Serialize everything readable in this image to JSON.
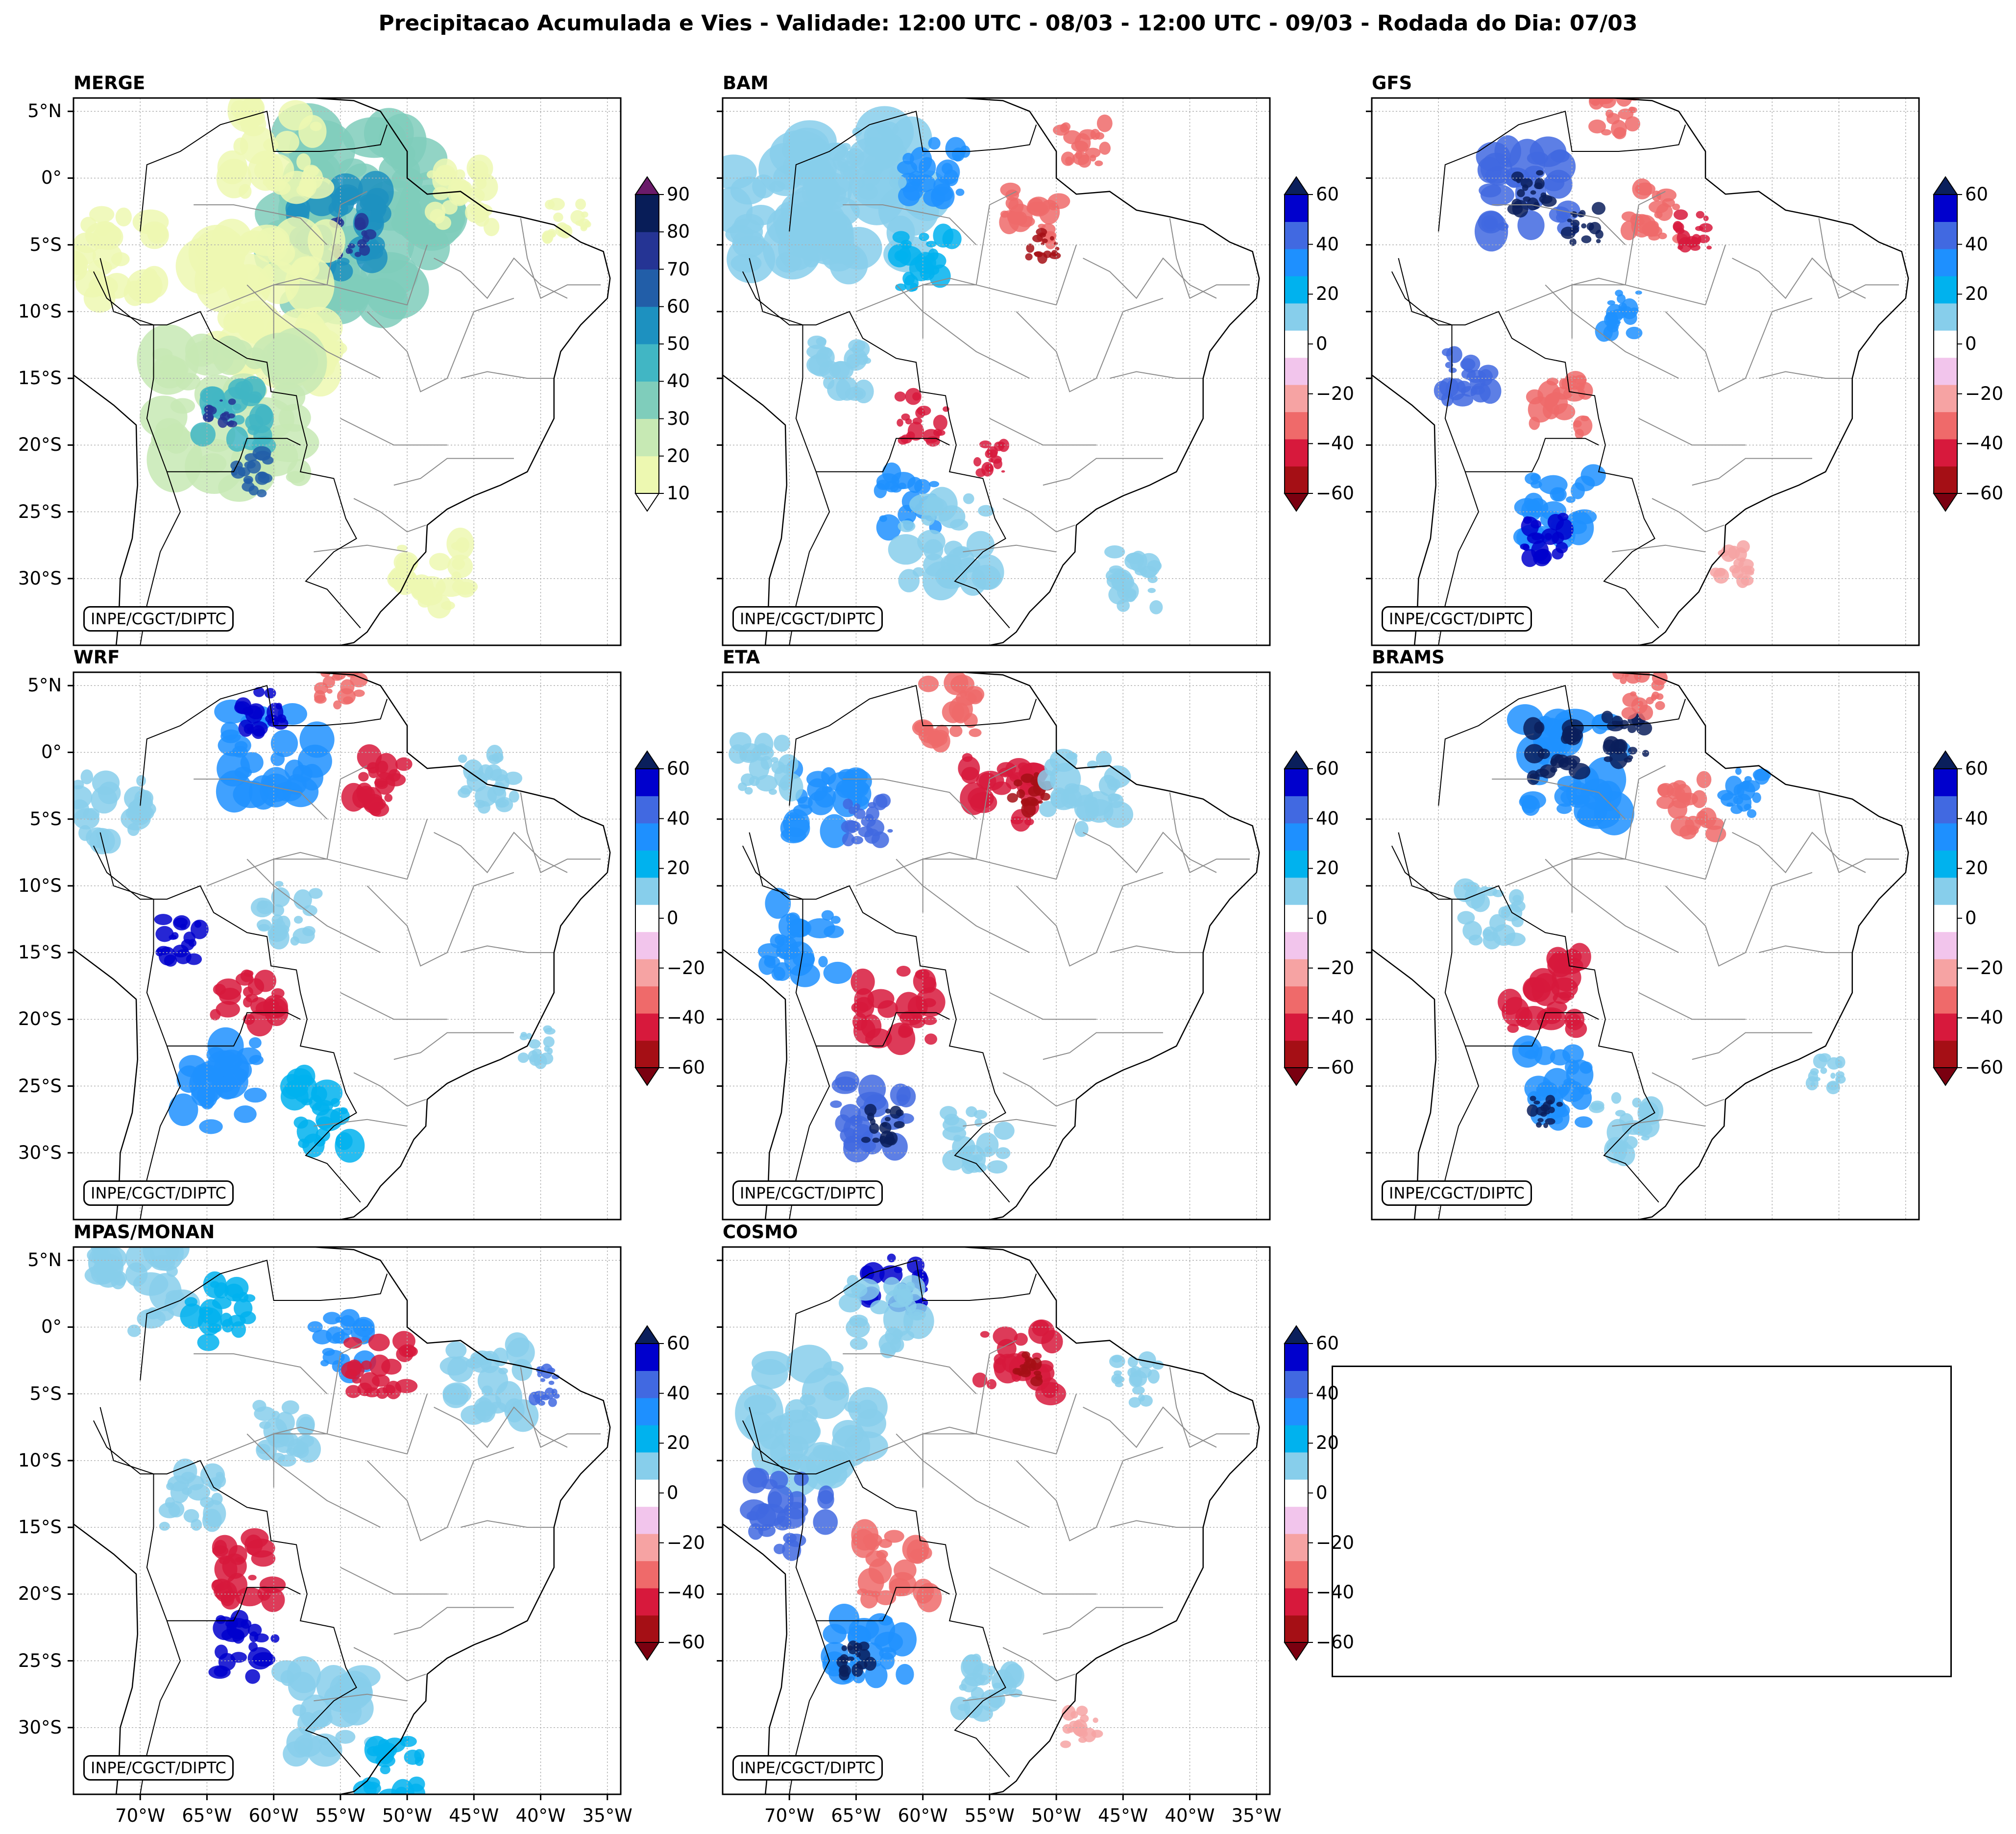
{
  "title": "Precipitacao Acumulada e Vies - Validade: 12:00 UTC - 08/03 - 12:00 UTC - 09/03 - Rodada do Dia: 07/03",
  "credit": "INPE/CGCT/DIPTC",
  "lat_ticks": [
    "5°N",
    "0°",
    "5°S",
    "10°S",
    "15°S",
    "20°S",
    "25°S",
    "30°S"
  ],
  "lon_ticks": [
    "70°W",
    "65°W",
    "60°W",
    "55°W",
    "50°W",
    "45°W",
    "40°W",
    "35°W"
  ],
  "panels": [
    {
      "name": "MERGE",
      "kind": "precip"
    },
    {
      "name": "BAM",
      "kind": "bias"
    },
    {
      "name": "GFS",
      "kind": "bias"
    },
    {
      "name": "WRF",
      "kind": "bias"
    },
    {
      "name": "ETA",
      "kind": "bias"
    },
    {
      "name": "BRAMS",
      "kind": "bias"
    },
    {
      "name": "MPAS/MONAN",
      "kind": "bias"
    },
    {
      "name": "COSMO",
      "kind": "bias"
    }
  ],
  "colorbars": {
    "precip": {
      "labels": [
        "90",
        "80",
        "70",
        "60",
        "50",
        "40",
        "30",
        "20",
        "10"
      ],
      "levels": [
        10,
        20,
        30,
        40,
        50,
        60,
        70,
        80,
        90
      ],
      "colors": [
        "#edf8b1",
        "#c7e9b4",
        "#7fcdbb",
        "#41b6c4",
        "#1d91c0",
        "#225ea8",
        "#253494",
        "#081d58"
      ],
      "over_color": "#6a1b6a",
      "under_color": "#ffffff"
    },
    "bias": {
      "labels": [
        "60",
        "40",
        "20",
        "0",
        "−20",
        "−40",
        "−60"
      ],
      "levels": [
        -60,
        -50,
        -40,
        -30,
        -20,
        -10,
        10,
        20,
        30,
        40,
        50,
        60
      ],
      "colors": [
        "#a50f15",
        "#d7193c",
        "#ef6a6a",
        "#f6a3a3",
        "#f2c5ec",
        "#ffffff",
        "#87ceeb",
        "#00b2ee",
        "#1e90ff",
        "#4169e1",
        "#0000cd"
      ],
      "over_color": "#0a1f5c",
      "under_color": "#7a0010"
    }
  },
  "map_extent": {
    "lon": [
      -75,
      -34
    ],
    "lat": [
      -35,
      6
    ]
  },
  "colors": {
    "land_line": "#000000",
    "state_line": "#8c8c8c",
    "grid": "#b0b0b0"
  }
}
